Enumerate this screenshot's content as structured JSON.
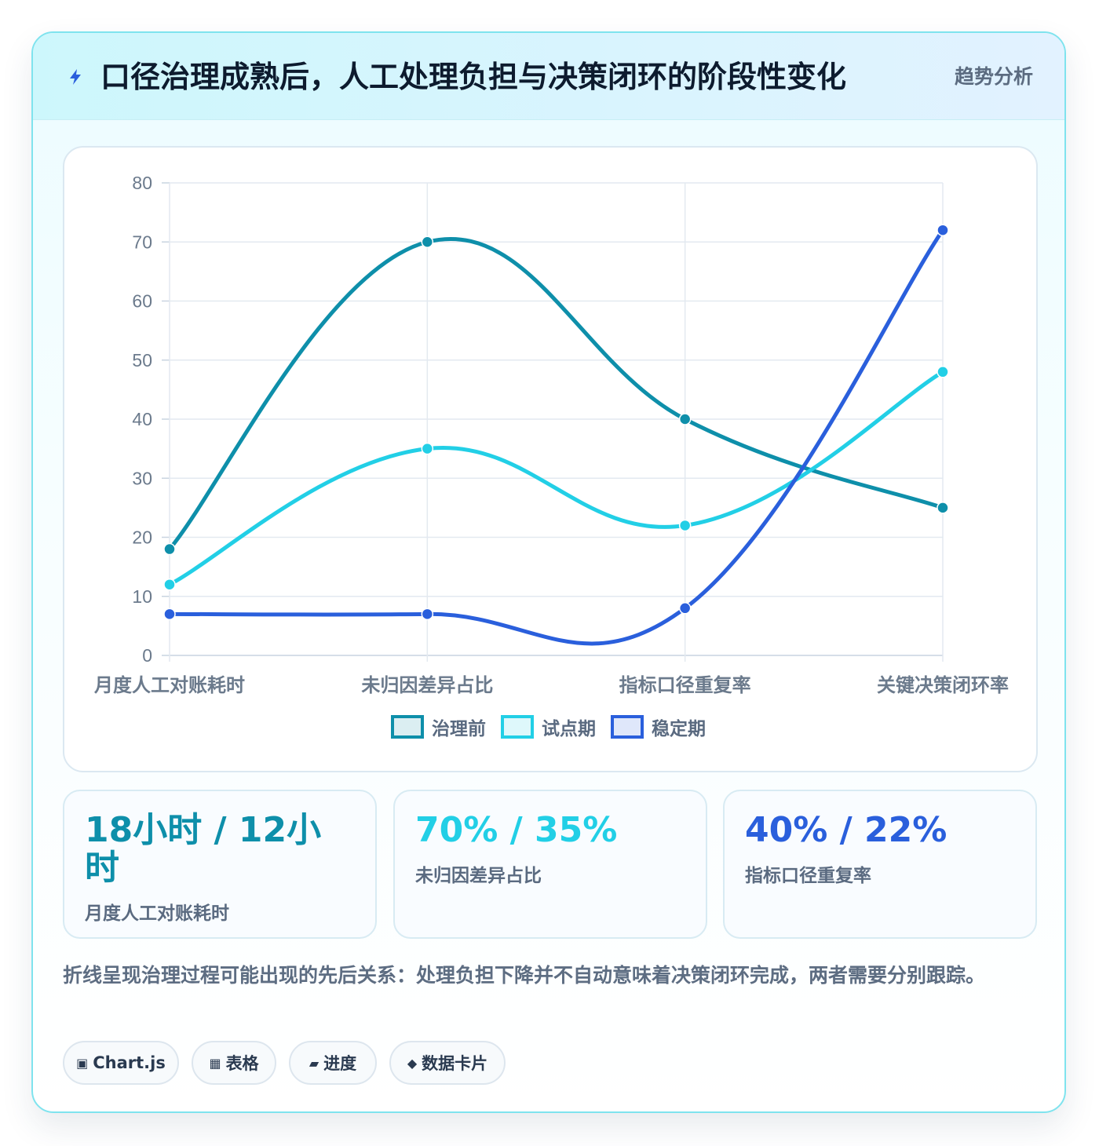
{
  "header": {
    "title": "口径治理成熟后，人工处理负担与决策闭环的阶段性变化",
    "badge": "趋势分析"
  },
  "chart_data": {
    "type": "line",
    "categories": [
      "月度人工对账耗时",
      "未归因差异占比",
      "指标口径重复率",
      "关键决策闭环率"
    ],
    "series": [
      {
        "name": "治理前",
        "values": [
          18,
          70,
          40,
          25
        ],
        "color": "#0e8faa"
      },
      {
        "name": "试点期",
        "values": [
          12,
          35,
          22,
          48
        ],
        "color": "#22cfe6"
      },
      {
        "name": "稳定期",
        "values": [
          7,
          7,
          8,
          72
        ],
        "color": "#2a5fdc"
      }
    ],
    "ylim": [
      0,
      80
    ],
    "yticks": [
      0,
      10,
      20,
      30,
      40,
      50,
      60,
      70,
      80
    ],
    "grid": true,
    "legend_position": "bottom",
    "smooth": true
  },
  "stats": [
    {
      "value": "18小时 / 12小时",
      "label": "月度人工对账耗时",
      "color": "#0e8faa"
    },
    {
      "value": "70% / 35%",
      "label": "未归因差异占比",
      "color": "#22cfe6"
    },
    {
      "value": "40% / 22%",
      "label": "指标口径重复率",
      "color": "#2a5fdc"
    }
  ],
  "note": "折线呈现治理过程可能出现的先后关系：处理负担下降并不自动意味着决策闭环完成，两者需要分别跟踪。",
  "tags": [
    {
      "icon": "▣",
      "label": "Chart.js"
    },
    {
      "icon": "▦",
      "label": "表格"
    },
    {
      "icon": "▰",
      "label": "进度"
    },
    {
      "icon": "◆",
      "label": "数据卡片"
    }
  ]
}
